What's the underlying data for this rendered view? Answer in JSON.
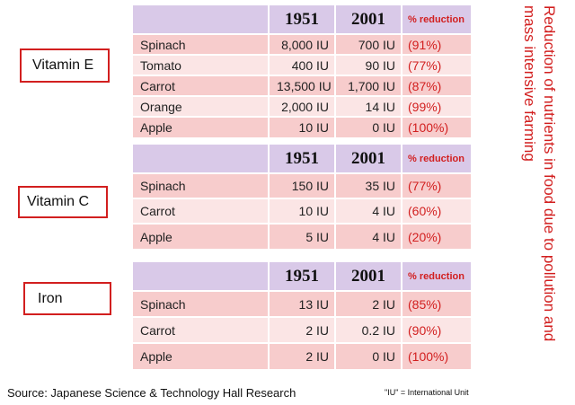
{
  "title_vertical": "Reduction of nutrients in food due to pollution and mass intensive farming",
  "headers": {
    "year1": "1951",
    "year2": "2001",
    "reduction": "% reduction"
  },
  "sections": [
    {
      "label": "Vitamin E",
      "rows": [
        {
          "item": "Spinach",
          "v1951": "8,000  IU",
          "v2001": "700  IU",
          "reduction": "(91%)"
        },
        {
          "item": "Tomato",
          "v1951": "400  IU",
          "v2001": "90  IU",
          "reduction": "(77%)"
        },
        {
          "item": "Carrot",
          "v1951": "13,500  IU",
          "v2001": "1,700  IU",
          "reduction": "(87%)"
        },
        {
          "item": "Orange",
          "v1951": "2,000  IU",
          "v2001": "14  IU",
          "reduction": "(99%)"
        },
        {
          "item": "Apple",
          "v1951": "10  IU",
          "v2001": "0  IU",
          "reduction": "(100%)"
        }
      ]
    },
    {
      "label": "Vitamin C",
      "rows": [
        {
          "item": "Spinach",
          "v1951": "150  IU",
          "v2001": "35  IU",
          "reduction": "(77%)"
        },
        {
          "item": "Carrot",
          "v1951": "10  IU",
          "v2001": "4  IU",
          "reduction": "(60%)"
        },
        {
          "item": "Apple",
          "v1951": "5  IU",
          "v2001": "4  IU",
          "reduction": "(20%)"
        }
      ]
    },
    {
      "label": "Iron",
      "rows": [
        {
          "item": "Spinach",
          "v1951": "13  IU",
          "v2001": "2  IU",
          "reduction": "(85%)"
        },
        {
          "item": "Carrot",
          "v1951": "2  IU",
          "v2001": "0.2  IU",
          "reduction": "(90%)"
        },
        {
          "item": "Apple",
          "v1951": "2  IU",
          "v2001": "0  IU",
          "reduction": "(100%)"
        }
      ]
    }
  ],
  "source": "Source: Japanese Science & Technology Hall Research",
  "iu_note": "\"IU\" = International Unit",
  "colors": {
    "accent_red": "#d21f1f",
    "header_purple": "#d9c9e8",
    "row_dark": "#f7cccc",
    "row_light": "#fbe5e5"
  }
}
